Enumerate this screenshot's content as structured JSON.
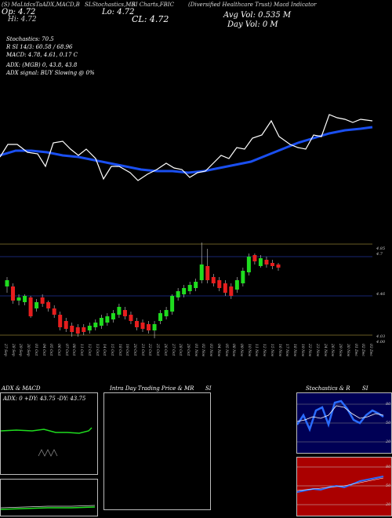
{
  "header": {
    "title_small": "(S) MaLtdcsTaADX,MACD,B",
    "mid_small": "SLStochastics,MR",
    "right_small": "SI Charts,FBIC",
    "company": "(Diversified Healthcare Trust) Macd Indicator",
    "open_label": "Op: 4.72",
    "high_label": "Hi: 4.72",
    "low_label": "Lo: 4.72",
    "close_label": "CL: 4.72",
    "avg_vol": "Avg Vol: 0.535 M",
    "day_vol": "Day Vol: 0 M"
  },
  "info": {
    "stochastics": "Stochastics: 70.5",
    "rsi": "R          SI 14/3: 60.58 / 68.96",
    "macd": "MACD: 4.78, 4.61, 0.17 C",
    "adx": "ADX:                            (MGB) 0, 43.8, 43.8",
    "adx_signal": "ADX  signal:                      BUY Slowing @ 0%"
  },
  "price_axis": {
    "labels": [
      "4.85",
      "4.7",
      "4.46",
      "4.03",
      "4.00"
    ]
  },
  "dates": [
    "27 Sep",
    "28 Sep",
    "29 Sep",
    "30 Sep",
    "01 Oct",
    "04 Oct",
    "05 Oct",
    "06 Oct",
    "07 Oct",
    "08 Oct",
    "11 Oct",
    "12 Oct",
    "13 Oct",
    "14 Oct",
    "15 Oct",
    "18 Oct",
    "19 Oct",
    "20 Oct",
    "21 Oct",
    "22 Oct",
    "25 Oct",
    "26 Oct",
    "27 Oct",
    "28 Oct",
    "29 Oct",
    "01 Nov",
    "02 Nov",
    "03 Nov",
    "04 Nov",
    "05 Nov",
    "08 Nov",
    "09 Nov",
    "10 Nov",
    "11 Nov",
    "12 Nov",
    "15 Nov",
    "16 Nov",
    "17 Nov",
    "18 Nov",
    "19 Nov",
    "22 Nov",
    "23 Nov",
    "24 Nov",
    "26 Nov",
    "29 Nov",
    "30 Nov",
    "01 Dec",
    "02 Dec",
    "03 Dec"
  ],
  "panels": {
    "adx_title": "ADX  & MACD",
    "adx_sub": "ADX: 0  +DY: 43.75  -DY: 43.75",
    "intraday_title": "Intra Day Trading Price  & MR",
    "intraday_si": "SI",
    "stoch_title": "Stochastics & R",
    "stoch_si": "SI",
    "stoch_axis": [
      "80",
      "50",
      "20"
    ],
    "rsi_axis": [
      "80",
      "50",
      "20"
    ]
  },
  "colors": {
    "up": "#1fdc1f",
    "down": "#e61e1e",
    "ma": "#1a4ff0",
    "stoch_bg": "#000055",
    "rsi_bg": "#aa0000"
  }
}
